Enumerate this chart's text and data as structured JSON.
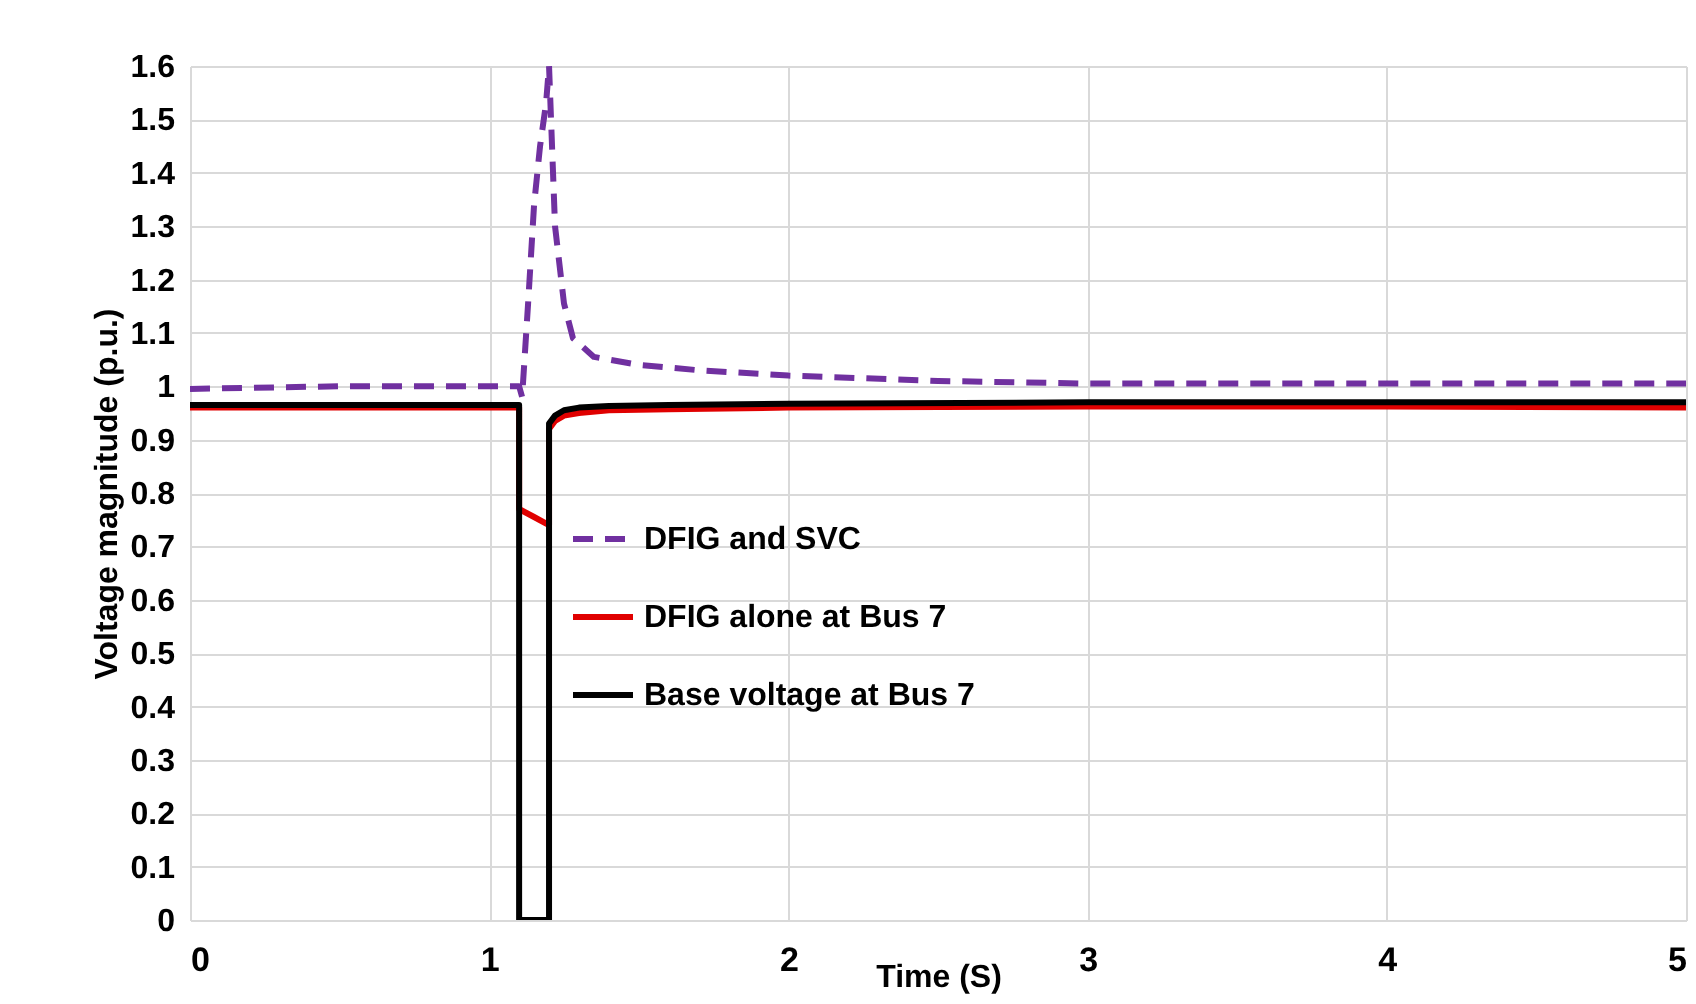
{
  "chart_data": {
    "type": "line",
    "xlabel": "Time (S)",
    "ylabel": "Voltage magnitude (p.u.)",
    "xlim": [
      0,
      5
    ],
    "xticks": [
      0,
      1,
      2,
      3,
      4,
      5
    ],
    "ylim": [
      0,
      1.6
    ],
    "yticks": [
      0,
      0.1,
      0.2,
      0.3,
      0.4,
      0.5,
      0.6,
      0.7,
      0.8,
      0.9,
      1,
      1.1,
      1.2,
      1.3,
      1.4,
      1.5,
      1.6
    ],
    "grid": true,
    "legend": "center left",
    "series": [
      {
        "name": "DFIG and SVC",
        "color": "#7030a0",
        "line_style": "dashed",
        "x": [
          0,
          0.5,
          1,
          1.1,
          1.11,
          1.13,
          1.15,
          1.17,
          1.19,
          1.2,
          1.22,
          1.25,
          1.28,
          1.35,
          1.5,
          1.7,
          2,
          2.5,
          3,
          4,
          5
        ],
        "values": [
          0.995,
          1,
          1,
          1,
          0.98,
          1.155,
          1.34,
          1.45,
          1.53,
          1.6,
          1.3,
          1.155,
          1.09,
          1.055,
          1.04,
          1.03,
          1.02,
          1.01,
          1.005,
          1.005,
          1.005
        ]
      },
      {
        "name": "DFIG alone at Bus 7",
        "color": "#e00000",
        "line_style": "solid",
        "x": [
          0,
          1,
          1.1,
          1.1,
          1.15,
          1.2,
          1.2,
          1.22,
          1.25,
          1.3,
          1.4,
          1.6,
          2,
          3,
          4,
          5
        ],
        "values": [
          0.96,
          0.96,
          0.96,
          0.77,
          0.755,
          0.74,
          0.92,
          0.935,
          0.945,
          0.95,
          0.955,
          0.957,
          0.96,
          0.962,
          0.962,
          0.96
        ]
      },
      {
        "name": "Base voltage at Bus 7",
        "color": "#000000",
        "line_style": "solid",
        "x": [
          0,
          1,
          1.1,
          1.1,
          1.2,
          1.2,
          1.22,
          1.25,
          1.3,
          1.4,
          1.6,
          2,
          3,
          4,
          5
        ],
        "values": [
          0.965,
          0.965,
          0.965,
          0,
          0,
          0.93,
          0.945,
          0.955,
          0.96,
          0.963,
          0.965,
          0.967,
          0.97,
          0.97,
          0.97
        ]
      }
    ]
  }
}
